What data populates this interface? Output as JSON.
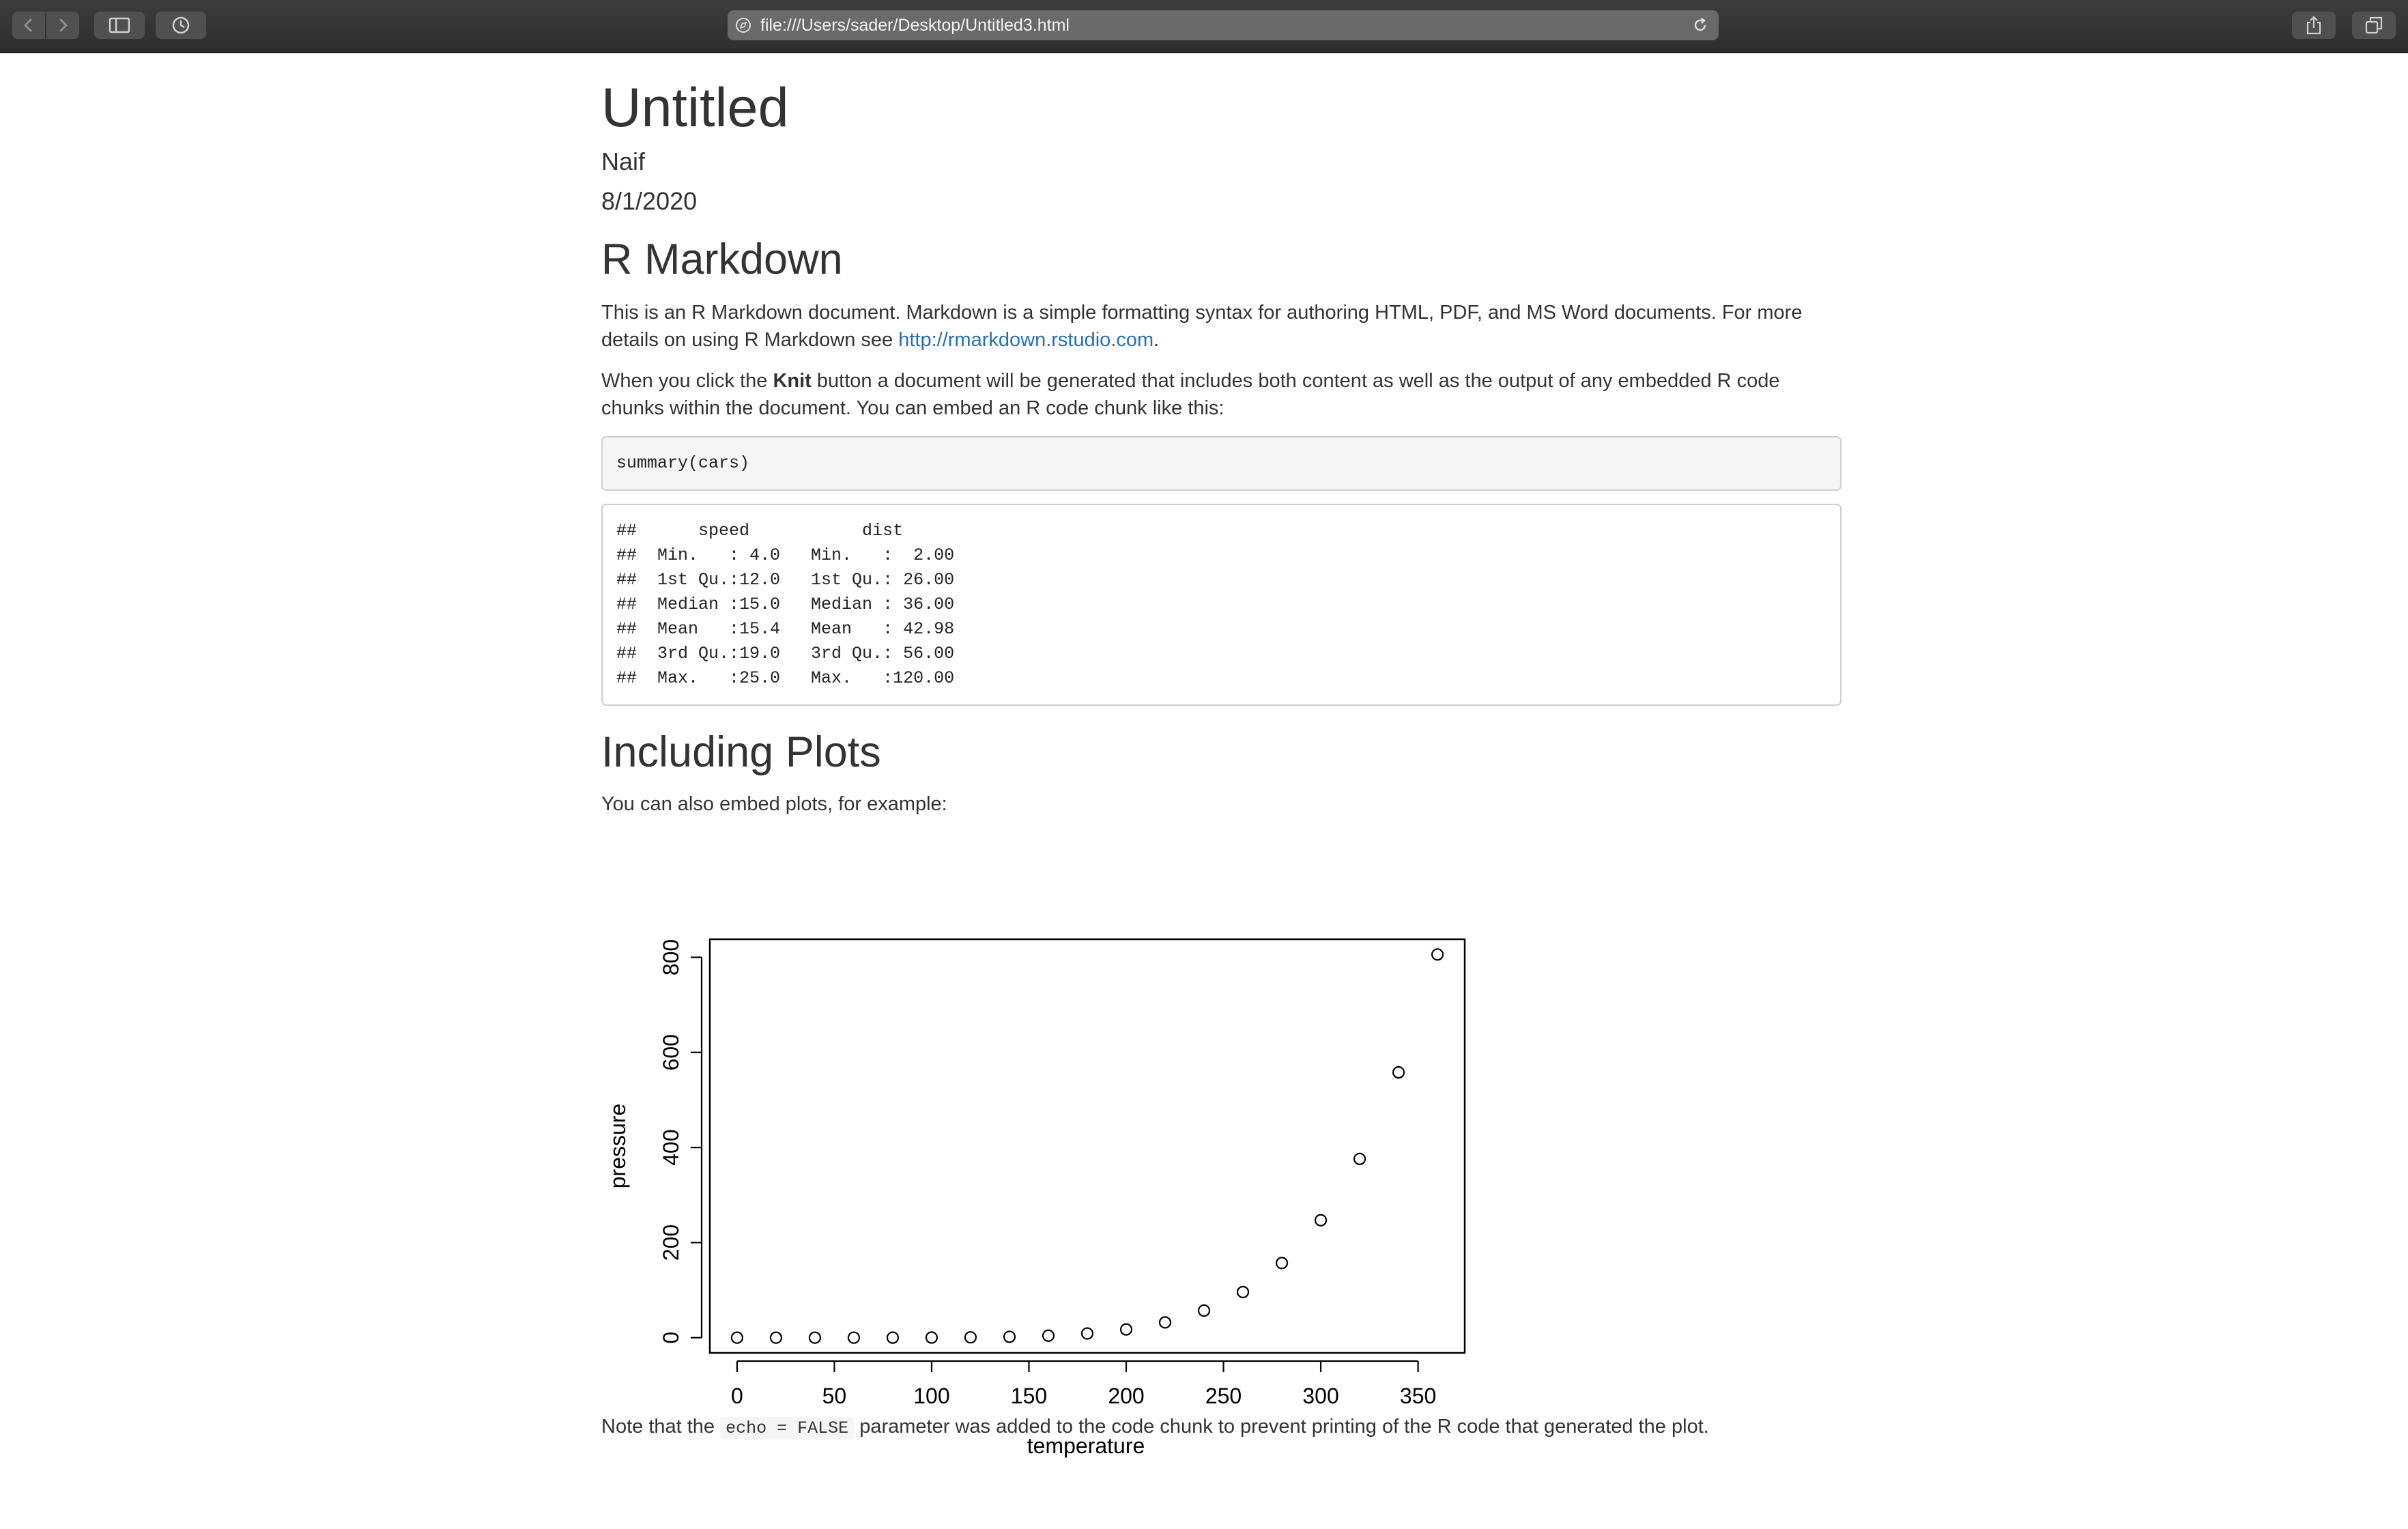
{
  "browser": {
    "url": "file:///Users/sader/Desktop/Untitled3.html",
    "icons": {
      "back": "chevron-left-icon",
      "forward": "chevron-right-icon",
      "sidebar": "sidebar-icon",
      "history": "clock-icon",
      "reload": "reload-icon",
      "share": "share-icon",
      "tabs": "tabs-icon"
    }
  },
  "doc": {
    "title": "Untitled",
    "author": "Naif",
    "date": "8/1/2020",
    "section1": {
      "heading": "R Markdown",
      "p1_before": "This is an R Markdown document. Markdown is a simple formatting syntax for authoring HTML, PDF, and MS Word documents. For more details on using R Markdown see ",
      "p1_link": "http://rmarkdown.rstudio.com",
      "p1_after": ".",
      "p2_before": "When you click the ",
      "p2_bold": "Knit",
      "p2_after": " button a document will be generated that includes both content as well as the output of any embedded R code chunks within the document. You can embed an R code chunk like this:",
      "code": "summary(cars)",
      "output": [
        "##      speed           dist       ",
        "##  Min.   : 4.0   Min.   :  2.00  ",
        "##  1st Qu.:12.0   1st Qu.: 26.00  ",
        "##  Median :15.0   Median : 36.00  ",
        "##  Mean   :15.4   Mean   : 42.98  ",
        "##  3rd Qu.:19.0   3rd Qu.: 56.00  ",
        "##  Max.   :25.0   Max.   :120.00  "
      ]
    },
    "section2": {
      "heading": "Including Plots",
      "p1": "You can also embed plots, for example:",
      "note_before": "Note that the ",
      "note_code": "echo = FALSE",
      "note_after": " parameter was added to the code chunk to prevent printing of the R code that generated the plot."
    }
  },
  "chart_data": {
    "type": "scatter",
    "title": "",
    "xlabel": "temperature",
    "ylabel": "pressure",
    "x": [
      0,
      20,
      40,
      60,
      80,
      100,
      120,
      140,
      160,
      180,
      200,
      220,
      240,
      260,
      280,
      300,
      320,
      340,
      360
    ],
    "y": [
      0.0002,
      0.0012,
      0.006,
      0.03,
      0.09,
      0.27,
      0.75,
      1.85,
      4.2,
      8.8,
      17.3,
      32.1,
      57,
      96,
      157,
      247,
      376,
      558,
      806
    ],
    "xlim": [
      -14,
      374
    ],
    "ylim": [
      -32,
      838
    ],
    "xticks": [
      0,
      50,
      100,
      150,
      200,
      250,
      300,
      350
    ],
    "yticks": [
      0,
      200,
      400,
      600,
      800
    ],
    "grid": false,
    "marker": "open-circle"
  }
}
